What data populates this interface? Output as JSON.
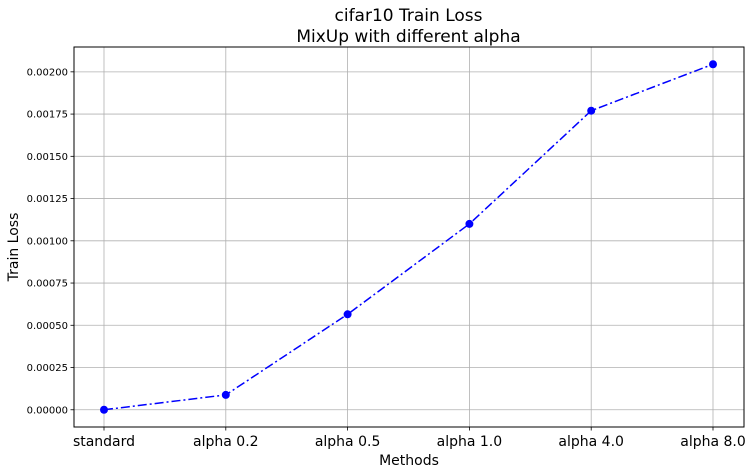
{
  "chart_data": {
    "type": "line",
    "title": "cifar10 Train Loss",
    "subtitle": "MixUp with different alpha",
    "xlabel": "Methods",
    "ylabel": "Train Loss",
    "categories": [
      "standard",
      "alpha 0.2",
      "alpha 0.5",
      "alpha 1.0",
      "alpha 4.0",
      "alpha 8.0"
    ],
    "series": [
      {
        "values": [
          0.0,
          8.8e-05,
          0.000565,
          0.0011,
          0.00177,
          0.002045
        ],
        "color": "#0000ff",
        "line_style": "dash-dot",
        "marker": "circle"
      }
    ],
    "yticks": [
      0.0,
      0.00025,
      0.0005,
      0.00075,
      0.001,
      0.00125,
      0.0015,
      0.00175,
      0.002
    ],
    "ytick_labels": [
      "0.00000",
      "0.00025",
      "0.00050",
      "0.00075",
      "0.00100",
      "0.00125",
      "0.00150",
      "0.00175",
      "0.00200"
    ],
    "ylim": [
      -0.000102,
      0.002147
    ],
    "grid": true,
    "legend": "none"
  }
}
